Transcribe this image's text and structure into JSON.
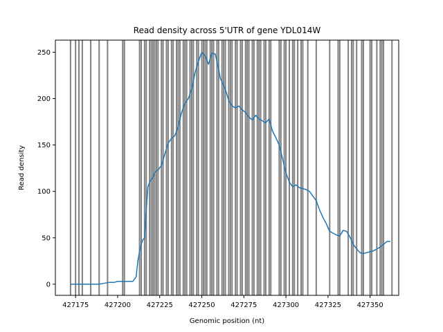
{
  "chart_data": {
    "type": "line",
    "title": "Read density across 5'UTR of gene YDL014W",
    "xlabel": "Genomic position (nt)",
    "ylabel": "Read density",
    "xlim": [
      427163,
      427367
    ],
    "ylim": [
      -12,
      263
    ],
    "xticks": [
      427175,
      427200,
      427225,
      427250,
      427275,
      427300,
      427325,
      427350
    ],
    "yticks": [
      0,
      50,
      100,
      150,
      200,
      250
    ],
    "grid": false,
    "legend": "none",
    "series": [
      {
        "color": "#1f77b4",
        "x": [
          427172,
          427189,
          427192,
          427195,
          427198,
          427200,
          427203,
          427206,
          427209,
          427211,
          427212,
          427213,
          427214,
          427215,
          427216,
          427217,
          427218,
          427219,
          427220,
          427221,
          427222,
          427223,
          427224,
          427226,
          427228,
          427230,
          427232,
          427234,
          427236,
          427238,
          427240,
          427242,
          427244,
          427246,
          427248,
          427250,
          427252,
          427254,
          427256,
          427258,
          427259,
          427260,
          427261,
          427262,
          427264,
          427266,
          427268,
          427270,
          427272,
          427274,
          427276,
          427278,
          427280,
          427282,
          427284,
          427286,
          427288,
          427290,
          427292,
          427294,
          427296,
          427298,
          427300,
          427302,
          427304,
          427306,
          427308,
          427310,
          427312,
          427314,
          427316,
          427318,
          427320,
          427322,
          427324,
          427326,
          427328,
          427330,
          427332,
          427334,
          427336,
          427338,
          427340,
          427342,
          427344,
          427346,
          427348,
          427350,
          427352,
          427354,
          427356,
          427358,
          427360,
          427362
        ],
        "values": [
          0,
          0,
          1,
          2,
          2,
          3,
          3,
          3,
          3,
          8,
          25,
          35,
          43,
          48,
          50,
          80,
          105,
          110,
          113,
          115,
          120,
          122,
          123,
          128,
          140,
          152,
          157,
          160,
          170,
          185,
          195,
          200,
          210,
          228,
          240,
          250,
          246,
          237,
          249,
          248,
          240,
          232,
          222,
          218,
          210,
          198,
          192,
          190,
          192,
          188,
          185,
          180,
          177,
          182,
          178,
          176,
          174,
          178,
          165,
          158,
          150,
          135,
          120,
          110,
          105,
          107,
          104,
          103,
          102,
          100,
          95,
          90,
          80,
          72,
          65,
          57,
          55,
          53,
          52,
          58,
          57,
          51,
          43,
          38,
          34,
          33,
          34,
          35,
          36,
          38,
          40,
          43,
          46,
          46
        ]
      }
    ],
    "vlines": {
      "color": "#808080",
      "x": [
        427172,
        427175,
        427177,
        427179,
        427184,
        427189,
        427194,
        427203,
        427204,
        427213,
        427214,
        427216,
        427217,
        427219,
        427220,
        427221,
        427222,
        427223,
        427224,
        427226,
        427227,
        427229,
        427230,
        427232,
        427233,
        427235,
        427236,
        427237,
        427239,
        427240,
        427241,
        427243,
        427244,
        427245,
        427247,
        427248,
        427250,
        427251,
        427252,
        427253,
        427255,
        427256,
        427257,
        427259,
        427260,
        427262,
        427263,
        427264,
        427266,
        427267,
        427268,
        427270,
        427271,
        427273,
        427274,
        427276,
        427277,
        427278,
        427280,
        427281,
        427283,
        427284,
        427285,
        427287,
        427288,
        427290,
        427291,
        427296,
        427297,
        427299,
        427300,
        427302,
        427304,
        427305,
        427307,
        427309,
        427310,
        427313,
        427318,
        427326,
        427331,
        427332,
        427337,
        427339,
        427340,
        427342,
        427345,
        427346,
        427350,
        427351,
        427354,
        427356,
        427357,
        427358,
        427363
      ]
    }
  }
}
